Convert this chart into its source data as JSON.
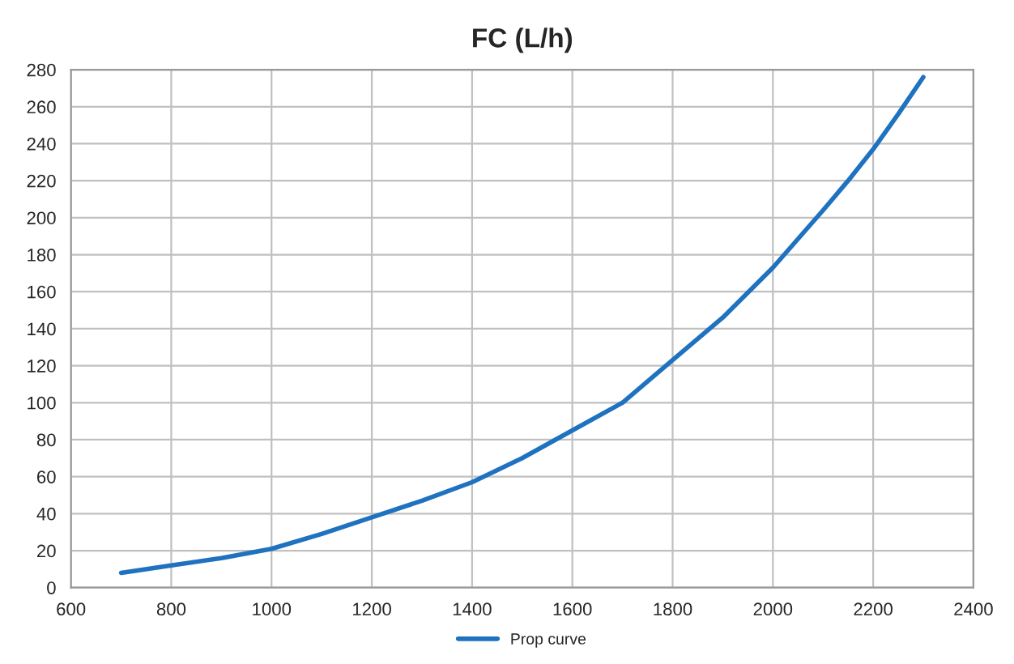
{
  "chart_data": {
    "type": "line",
    "title": "FC (L/h)",
    "x": [
      700,
      800,
      900,
      1000,
      1100,
      1200,
      1300,
      1400,
      1500,
      1600,
      1700,
      1800,
      1900,
      2000,
      2100,
      2150,
      2200,
      2250,
      2300
    ],
    "series": [
      {
        "name": "Prop curve",
        "color": "#1f72bf",
        "values": [
          8,
          12,
          16,
          21,
          29,
          38,
          47,
          57,
          70,
          85,
          100,
          123,
          146,
          173,
          204,
          220,
          237,
          256,
          276
        ]
      }
    ],
    "xlim": [
      600,
      2400
    ],
    "xticks": [
      600,
      800,
      1000,
      1200,
      1400,
      1600,
      1800,
      2000,
      2200,
      2400
    ],
    "ylim": [
      0,
      280
    ],
    "yticks": [
      0,
      20,
      40,
      60,
      80,
      100,
      120,
      140,
      160,
      180,
      200,
      220,
      240,
      260,
      280
    ],
    "grid": true,
    "legend": "bottom",
    "marker": "none",
    "line_style": "solid"
  }
}
